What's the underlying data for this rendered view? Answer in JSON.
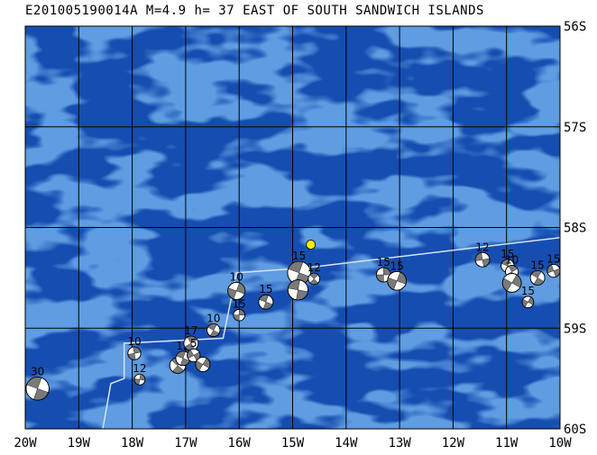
{
  "title": "E201005190014A M=4.9 h= 37 EAST OF SOUTH SANDWICH ISLANDS",
  "colors": {
    "ocean": "#1f5ec8",
    "ocean_light": "#3a78d2",
    "ocean_dark": "#164db0",
    "grid": "#000000",
    "boundary": "#d6e4f5",
    "epicenter": "#ffee00",
    "beachball_dark": "#7a7a7a"
  },
  "extent": {
    "lon_min": -20,
    "lon_max": -10,
    "lat_min": -60,
    "lat_max": -56
  },
  "x_ticks": [
    {
      "lon": -20,
      "label": "20W"
    },
    {
      "lon": -19,
      "label": "19W"
    },
    {
      "lon": -18,
      "label": "18W"
    },
    {
      "lon": -17,
      "label": "17W"
    },
    {
      "lon": -16,
      "label": "16W"
    },
    {
      "lon": -15,
      "label": "15W"
    },
    {
      "lon": -14,
      "label": "14W"
    },
    {
      "lon": -13,
      "label": "13W"
    },
    {
      "lon": -12,
      "label": "12W"
    },
    {
      "lon": -11,
      "label": "11W"
    },
    {
      "lon": -10,
      "label": "10W"
    }
  ],
  "y_ticks": [
    {
      "lat": -56,
      "label": "56S"
    },
    {
      "lat": -57,
      "label": "57S"
    },
    {
      "lat": -58,
      "label": "58S"
    },
    {
      "lat": -59,
      "label": "59S"
    },
    {
      "lat": -60,
      "label": "60S"
    }
  ],
  "epicenter": {
    "lon": -14.66,
    "lat": -58.17
  },
  "plate_boundary": [
    [
      -18.55,
      -60.0
    ],
    [
      -18.4,
      -59.55
    ],
    [
      -18.15,
      -59.5
    ],
    [
      -18.15,
      -59.15
    ],
    [
      -16.3,
      -59.1
    ],
    [
      -16.05,
      -58.45
    ],
    [
      -14.75,
      -58.4
    ],
    [
      -10.0,
      -58.1
    ]
  ],
  "events": [
    {
      "lon": -19.77,
      "lat": -59.6,
      "depth": "30",
      "mag": 5.6,
      "strike": 20
    },
    {
      "lon": -17.96,
      "lat": -59.25,
      "depth": "10",
      "mag": 4.9,
      "strike": 80
    },
    {
      "lon": -17.86,
      "lat": -59.51,
      "depth": "12",
      "mag": 4.7,
      "strike": 100
    },
    {
      "lon": -17.15,
      "lat": -59.37,
      "depth": "",
      "mag": 5.1,
      "strike": 40
    },
    {
      "lon": -17.05,
      "lat": -59.3,
      "depth": "12",
      "mag": 5.0,
      "strike": 200
    },
    {
      "lon": -16.9,
      "lat": -59.15,
      "depth": "17",
      "mag": 5.0,
      "strike": 60
    },
    {
      "lon": -16.85,
      "lat": -59.27,
      "depth": "5",
      "mag": 4.9,
      "strike": 150
    },
    {
      "lon": -16.68,
      "lat": -59.36,
      "depth": "",
      "mag": 5.0,
      "strike": 300
    },
    {
      "lon": -16.48,
      "lat": -59.02,
      "depth": "10",
      "mag": 4.9,
      "strike": 30
    },
    {
      "lon": -16.05,
      "lat": -58.63,
      "depth": "10",
      "mag": 5.2,
      "strike": 110
    },
    {
      "lon": -16.0,
      "lat": -58.87,
      "depth": "15",
      "mag": 4.8,
      "strike": 90
    },
    {
      "lon": -15.5,
      "lat": -58.74,
      "depth": "15",
      "mag": 5.0,
      "strike": 20
    },
    {
      "lon": -14.88,
      "lat": -58.45,
      "depth": "15",
      "mag": 5.6,
      "strike": 200
    },
    {
      "lon": -14.9,
      "lat": -58.62,
      "depth": "",
      "mag": 5.4,
      "strike": 10
    },
    {
      "lon": -14.6,
      "lat": -58.51,
      "depth": "12",
      "mag": 4.8,
      "strike": 45
    },
    {
      "lon": -13.3,
      "lat": -58.47,
      "depth": "15",
      "mag": 5.0,
      "strike": 90
    },
    {
      "lon": -13.05,
      "lat": -58.53,
      "depth": "15",
      "mag": 5.3,
      "strike": 110
    },
    {
      "lon": -11.45,
      "lat": -58.32,
      "depth": "12",
      "mag": 5.0,
      "strike": 170
    },
    {
      "lon": -10.98,
      "lat": -58.38,
      "depth": "15",
      "mag": 4.9,
      "strike": 200
    },
    {
      "lon": -10.9,
      "lat": -58.44,
      "depth": "10",
      "mag": 4.9,
      "strike": 60
    },
    {
      "lon": -10.9,
      "lat": -58.55,
      "depth": "",
      "mag": 5.3,
      "strike": 120
    },
    {
      "lon": -10.6,
      "lat": -58.74,
      "depth": "15",
      "mag": 4.8,
      "strike": 300
    },
    {
      "lon": -10.42,
      "lat": -58.5,
      "depth": "15",
      "mag": 5.0,
      "strike": 30
    },
    {
      "lon": -10.12,
      "lat": -58.43,
      "depth": "15",
      "mag": 4.9,
      "strike": 160
    }
  ]
}
